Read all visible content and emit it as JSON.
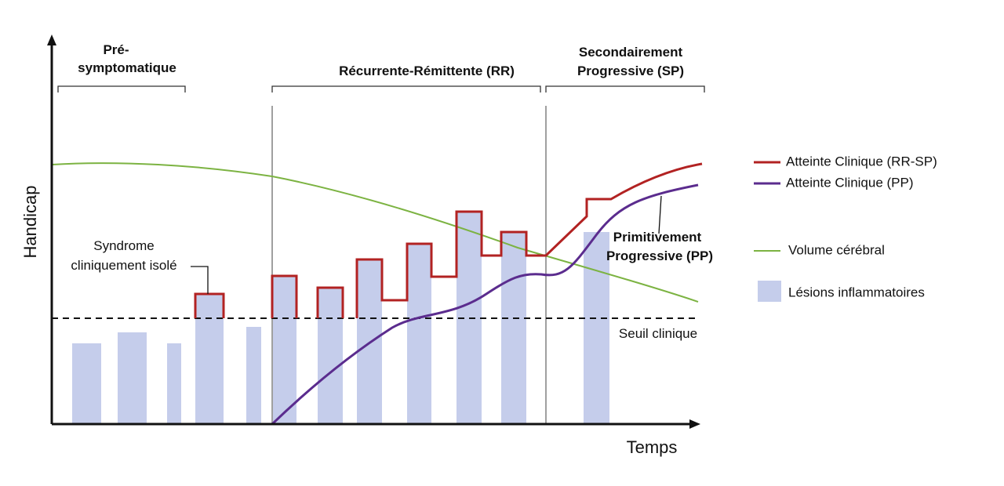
{
  "y_axis_title": "Handicap",
  "x_axis_title": "Temps",
  "phases": {
    "pre_line1": "Pré-",
    "pre_line2": "symptomatique",
    "rr": "Récurrente-Rémittente (RR)",
    "sp_line1": "Secondairement",
    "sp_line2": "Progressive (SP)"
  },
  "annotations": {
    "cis_line1": "Syndrome",
    "cis_line2": "cliniquement isolé",
    "pp_line1": "Primitivement",
    "pp_line2": "Progressive (PP)",
    "threshold": "Seuil clinique"
  },
  "legend": {
    "rr_sp": "Atteinte Clinique (RR-SP)",
    "pp": "Atteinte Clinique (PP)",
    "volume": "Volume cérébral",
    "lesions": "Lésions inflammatoires"
  },
  "colors": {
    "rr_sp": "#b22222",
    "pp": "#5b2c8e",
    "volume": "#7cb342",
    "lesions": "#c5cdeb",
    "threshold": "#111111",
    "phase_divider": "#a0a0a0"
  }
}
